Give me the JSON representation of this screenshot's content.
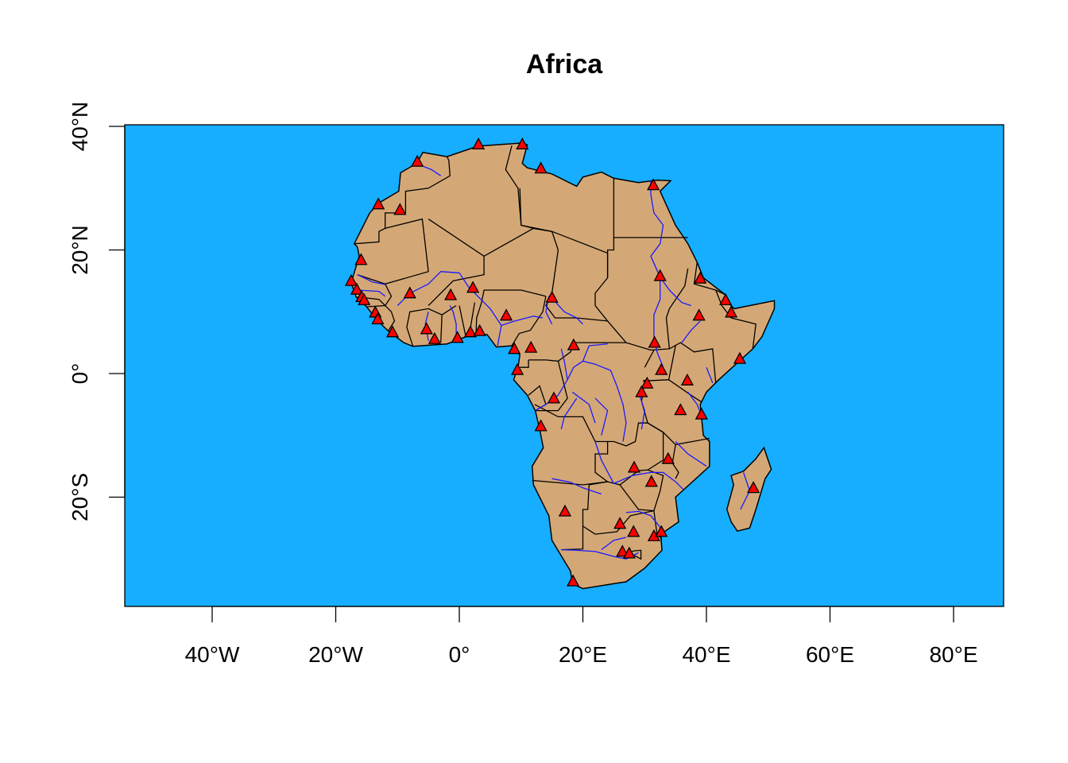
{
  "title": "Africa",
  "colors": {
    "ocean": "#17AEFF",
    "land": "#D4A876",
    "river": "#1A1AFF",
    "border": "#000000",
    "marker": "#FF0000"
  },
  "chart_data": {
    "type": "map",
    "title": "Africa",
    "xlim": [
      -54,
      88
    ],
    "ylim": [
      -37.7,
      40.3
    ],
    "x_ticks": [
      {
        "value": -40,
        "label": "40°W"
      },
      {
        "value": -20,
        "label": "20°W"
      },
      {
        "value": 0,
        "label": "0°"
      },
      {
        "value": 20,
        "label": "20°E"
      },
      {
        "value": 40,
        "label": "40°E"
      },
      {
        "value": 60,
        "label": "60°E"
      },
      {
        "value": 80,
        "label": "80°E"
      }
    ],
    "y_ticks": [
      {
        "value": 40,
        "label": "40°N"
      },
      {
        "value": 20,
        "label": "20°N"
      },
      {
        "value": 0,
        "label": "0°"
      },
      {
        "value": -20,
        "label": "20°S"
      }
    ],
    "marker_symbol": "triangle",
    "points": [
      [
        3.1,
        37.0
      ],
      [
        10.2,
        37.0
      ],
      [
        -6.8,
        34.2
      ],
      [
        13.2,
        33.1
      ],
      [
        31.4,
        30.4
      ],
      [
        -13.1,
        27.3
      ],
      [
        -9.6,
        26.4
      ],
      [
        -15.9,
        18.3
      ],
      [
        -17.5,
        14.9
      ],
      [
        -16.6,
        13.5
      ],
      [
        -15.8,
        12.3
      ],
      [
        -15.4,
        11.8
      ],
      [
        32.5,
        15.7
      ],
      [
        39.0,
        15.3
      ],
      [
        -8.0,
        12.9
      ],
      [
        -1.4,
        12.6
      ],
      [
        2.2,
        13.8
      ],
      [
        15.0,
        12.2
      ],
      [
        43.1,
        11.8
      ],
      [
        44.0,
        9.8
      ],
      [
        -13.6,
        9.8
      ],
      [
        -13.2,
        8.7
      ],
      [
        38.8,
        9.3
      ],
      [
        7.6,
        9.3
      ],
      [
        -10.8,
        6.6
      ],
      [
        -5.3,
        7.1
      ],
      [
        -4.0,
        5.5
      ],
      [
        -0.3,
        5.7
      ],
      [
        1.8,
        6.6
      ],
      [
        3.3,
        6.8
      ],
      [
        8.9,
        3.9
      ],
      [
        11.6,
        4.1
      ],
      [
        18.5,
        4.5
      ],
      [
        31.6,
        4.9
      ],
      [
        45.4,
        2.3
      ],
      [
        32.7,
        0.5
      ],
      [
        9.4,
        0.5
      ],
      [
        36.9,
        -1.2
      ],
      [
        30.4,
        -1.7
      ],
      [
        29.5,
        -3.1
      ],
      [
        15.3,
        -4.1
      ],
      [
        35.8,
        -6.0
      ],
      [
        39.2,
        -6.7
      ],
      [
        13.2,
        -8.6
      ],
      [
        33.8,
        -13.9
      ],
      [
        28.3,
        -15.3
      ],
      [
        31.1,
        -17.6
      ],
      [
        47.6,
        -18.6
      ],
      [
        17.1,
        -22.4
      ],
      [
        26.0,
        -24.4
      ],
      [
        28.2,
        -25.7
      ],
      [
        31.5,
        -26.4
      ],
      [
        32.7,
        -25.7
      ],
      [
        26.4,
        -28.9
      ],
      [
        27.5,
        -29.2
      ],
      [
        18.4,
        -33.7
      ]
    ]
  }
}
